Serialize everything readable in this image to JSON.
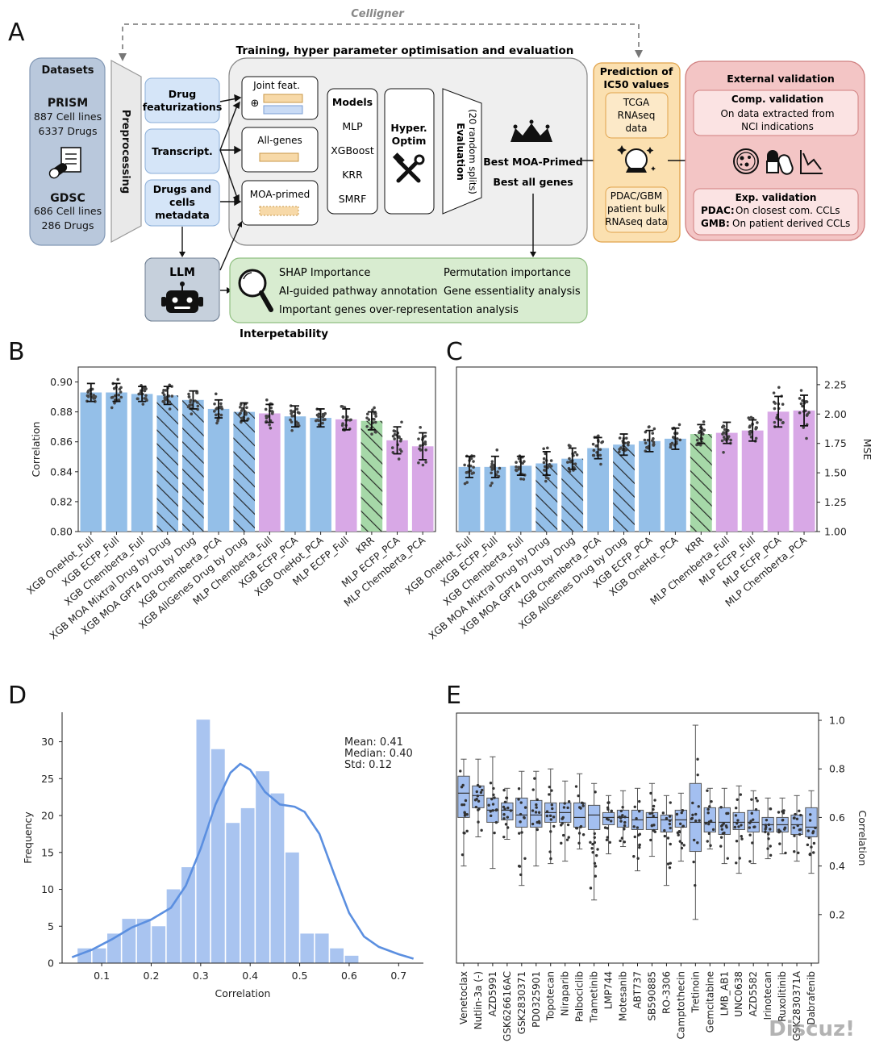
{
  "panel_a": {
    "letter": "A",
    "celligner": "Celligner",
    "training_title": "Training, hyper parameter optimisation and evaluation",
    "datasets": {
      "title": "Datasets",
      "prism_name": "PRISM",
      "prism_cells": "887 Cell lines",
      "prism_drugs": "6337 Drugs",
      "gdsc_name": "GDSC",
      "gdsc_cells": "686 Cell lines",
      "gdsc_drugs": "286 Drugs"
    },
    "preprocessing": "Preprocessing",
    "inputs": {
      "drug_feat_1": "Drug",
      "drug_feat_2": "featurizations",
      "transcript": "Transcript.",
      "meta_1": "Drugs and",
      "meta_2": "cells",
      "meta_3": "metadata"
    },
    "features": {
      "joint": "Joint feat.",
      "plus": "⊕",
      "allgenes": "All-genes",
      "moa": "MOA-primed"
    },
    "models": {
      "title": "Models",
      "items": [
        "MLP",
        "XGBoost",
        "KRR",
        "SMRF"
      ]
    },
    "hyper": {
      "line1": "Hyper.",
      "line2": "Optim"
    },
    "evaluation": {
      "line1": "Evaluation",
      "line2": "(20 random splits)"
    },
    "best": {
      "line1": "Best MOA-Primed",
      "line2": "Best all genes"
    },
    "prediction": {
      "title1": "Prediction of",
      "title2": "IC50 values",
      "tcga1": "TCGA",
      "tcga2": "RNAseq",
      "tcga3": "data",
      "pdac1": "PDAC/GBM",
      "pdac2": "patient bulk",
      "pdac3": "RNAseq data"
    },
    "external": {
      "title": "External validation",
      "comp_title": "Comp. validation",
      "comp1": "On data extracted from",
      "comp2": "NCI indications",
      "exp_title": "Exp. validation",
      "pdac_label": "PDAC:",
      "pdac_text": "On closest com. CCLs",
      "gmb_label": "GMB:",
      "gmb_text": "On patient derived CCLs"
    },
    "llm": "LLM",
    "interp": {
      "shap": "SHAP Importance",
      "perm": "Permutation importance",
      "ai": "AI-guided pathway annotation",
      "gene": "Gene essentiality analysis",
      "overrep": "Important genes over-representation analysis",
      "title": "Interpetability"
    }
  },
  "colors": {
    "xgb_blue": "#94bfe8",
    "mlp_purple": "#d8a8e6",
    "krr_green": "#a6d8a8",
    "hist_blue": "#a9c4f0",
    "kde_blue": "#5b8fe0",
    "box_blue": "#a3bff0"
  },
  "chart_data": [
    {
      "panel": "B",
      "type": "bar",
      "ylabel": "Correlation",
      "ylim": [
        0.8,
        0.91
      ],
      "yticks": [
        "0.80",
        "0.82",
        "0.84",
        "0.86",
        "0.88",
        "0.90"
      ],
      "categories": [
        "XGB OneHot_Full",
        "XGB ECFP_Full",
        "XGB Chemberta_Full",
        "XGB MOA Mixtral Drug by Drug",
        "XGB MOA GPT4 Drug by Drug",
        "XGB Chemberta_PCA",
        "XGB AllGenes Drug by Drug",
        "MLP Chemberta_Full",
        "XGB ECFP_PCA",
        "XGB OneHot_PCA",
        "MLP ECFP_Full",
        "KRR",
        "MLP ECFP_PCA",
        "MLP Chemberta_PCA"
      ],
      "values": [
        0.893,
        0.893,
        0.892,
        0.891,
        0.888,
        0.882,
        0.88,
        0.879,
        0.877,
        0.876,
        0.875,
        0.874,
        0.861,
        0.857
      ],
      "errors": [
        0.006,
        0.006,
        0.005,
        0.006,
        0.006,
        0.006,
        0.006,
        0.006,
        0.007,
        0.006,
        0.007,
        0.006,
        0.009,
        0.009
      ],
      "group": [
        "xgb",
        "xgb",
        "xgb",
        "xgb",
        "xgb",
        "xgb",
        "xgb",
        "mlp",
        "xgb",
        "xgb",
        "mlp",
        "krr",
        "mlp",
        "mlp"
      ],
      "hatched": [
        false,
        false,
        false,
        true,
        true,
        false,
        true,
        false,
        false,
        false,
        false,
        true,
        false,
        false
      ]
    },
    {
      "panel": "C",
      "type": "bar",
      "ylabel": "MSE",
      "ylim": [
        1.0,
        2.4
      ],
      "yticks": [
        "1.00",
        "1.25",
        "1.50",
        "1.75",
        "2.00",
        "2.25"
      ],
      "categories": [
        "XGB OneHot_Full",
        "XGB ECFP_Full",
        "XGB Chemberta_Full",
        "XGB MOA Mixtral Drug by Drug",
        "XGB MOA GPT4 Drug by Drug",
        "XGB Chemberta_PCA",
        "XGB AllGenes Drug by Drug",
        "XGB ECFP_PCA",
        "XGB OneHot_PCA",
        "KRR",
        "MLP Chemberta_Full",
        "MLP ECFP_Full",
        "MLP ECFP_PCA",
        "MLP Chemberta_PCA"
      ],
      "values": [
        1.55,
        1.55,
        1.56,
        1.58,
        1.62,
        1.71,
        1.74,
        1.77,
        1.79,
        1.83,
        1.84,
        1.86,
        2.02,
        2.03
      ],
      "errors": [
        0.09,
        0.09,
        0.08,
        0.1,
        0.09,
        0.09,
        0.09,
        0.09,
        0.09,
        0.08,
        0.09,
        0.09,
        0.13,
        0.13
      ],
      "group": [
        "xgb",
        "xgb",
        "xgb",
        "xgb",
        "xgb",
        "xgb",
        "xgb",
        "xgb",
        "xgb",
        "krr",
        "mlp",
        "mlp",
        "mlp",
        "mlp"
      ],
      "hatched": [
        false,
        false,
        false,
        true,
        true,
        false,
        true,
        false,
        false,
        true,
        false,
        false,
        false,
        false
      ]
    },
    {
      "panel": "D",
      "type": "histogram",
      "xlabel": "Correlation",
      "ylabel": "Frequency",
      "xlim": [
        0.02,
        0.75
      ],
      "ylim": [
        0,
        34
      ],
      "xticks": [
        "0.1",
        "0.2",
        "0.3",
        "0.4",
        "0.5",
        "0.6",
        "0.7"
      ],
      "yticks": [
        "0",
        "5",
        "10",
        "15",
        "20",
        "25",
        "30"
      ],
      "bin_start": 0.05,
      "bin_width": 0.03,
      "counts": [
        2,
        2,
        4,
        6,
        6,
        5,
        10,
        13,
        33,
        29,
        19,
        21,
        26,
        23,
        15,
        4,
        4,
        2,
        1
      ],
      "kde": [
        [
          0.04,
          0.8
        ],
        [
          0.08,
          1.8
        ],
        [
          0.12,
          3.2
        ],
        [
          0.16,
          4.8
        ],
        [
          0.2,
          5.9
        ],
        [
          0.24,
          7.5
        ],
        [
          0.27,
          10.5
        ],
        [
          0.3,
          15.5
        ],
        [
          0.33,
          21.5
        ],
        [
          0.36,
          25.8
        ],
        [
          0.38,
          27.0
        ],
        [
          0.4,
          26.2
        ],
        [
          0.43,
          23.2
        ],
        [
          0.46,
          21.5
        ],
        [
          0.49,
          21.2
        ],
        [
          0.51,
          20.5
        ],
        [
          0.54,
          17.5
        ],
        [
          0.57,
          12.0
        ],
        [
          0.6,
          6.8
        ],
        [
          0.63,
          3.6
        ],
        [
          0.66,
          2.2
        ],
        [
          0.7,
          1.2
        ],
        [
          0.73,
          0.6
        ]
      ],
      "stats": {
        "mean": "Mean: 0.41",
        "median": "Median: 0.40",
        "std": "Std: 0.12"
      }
    },
    {
      "panel": "E",
      "type": "box",
      "ylabel": "Correlation",
      "ylim": [
        0.0,
        1.03
      ],
      "yticks": [
        "0.2",
        "0.4",
        "0.6",
        "0.8",
        "1.0"
      ],
      "categories": [
        "Venetoclax",
        "Nutlin-3a (-)",
        "AZD5991",
        "GSK626616AC",
        "GSK2830371",
        "PD0325901",
        "Topotecan",
        "Niraparib",
        "Palbociclib",
        "Trametinib",
        "LMP744",
        "Motesanib",
        "ABT737",
        "SB590885",
        "RO-3306",
        "Camptothecin",
        "Tretinoin",
        "Gemcitabine",
        "LMB_AB1",
        "UNC0638",
        "AZD5582",
        "Irinotecan",
        "Ruxolitinib",
        "GSK2830371A",
        "Dabrafenib"
      ],
      "boxes": [
        {
          "min": 0.4,
          "q1": 0.6,
          "median": 0.7,
          "q3": 0.77,
          "max": 0.84
        },
        {
          "min": 0.52,
          "q1": 0.64,
          "median": 0.69,
          "q3": 0.73,
          "max": 0.84
        },
        {
          "min": 0.39,
          "q1": 0.58,
          "median": 0.63,
          "q3": 0.68,
          "max": 0.85
        },
        {
          "min": 0.51,
          "q1": 0.59,
          "median": 0.63,
          "q3": 0.66,
          "max": 0.72
        },
        {
          "min": 0.32,
          "q1": 0.56,
          "median": 0.61,
          "q3": 0.68,
          "max": 0.79
        },
        {
          "min": 0.4,
          "q1": 0.56,
          "median": 0.61,
          "q3": 0.67,
          "max": 0.79
        },
        {
          "min": 0.41,
          "q1": 0.58,
          "median": 0.62,
          "q3": 0.66,
          "max": 0.8
        },
        {
          "min": 0.42,
          "q1": 0.58,
          "median": 0.62,
          "q3": 0.66,
          "max": 0.75
        },
        {
          "min": 0.47,
          "q1": 0.56,
          "median": 0.6,
          "q3": 0.66,
          "max": 0.78
        },
        {
          "min": 0.26,
          "q1": 0.55,
          "median": 0.61,
          "q3": 0.65,
          "max": 0.74
        },
        {
          "min": 0.45,
          "q1": 0.57,
          "median": 0.6,
          "q3": 0.62,
          "max": 0.69
        },
        {
          "min": 0.48,
          "q1": 0.56,
          "median": 0.6,
          "q3": 0.63,
          "max": 0.71
        },
        {
          "min": 0.38,
          "q1": 0.55,
          "median": 0.59,
          "q3": 0.63,
          "max": 0.72
        },
        {
          "min": 0.44,
          "q1": 0.55,
          "median": 0.6,
          "q3": 0.62,
          "max": 0.74
        },
        {
          "min": 0.32,
          "q1": 0.54,
          "median": 0.59,
          "q3": 0.61,
          "max": 0.69
        },
        {
          "min": 0.42,
          "q1": 0.56,
          "median": 0.59,
          "q3": 0.63,
          "max": 0.7
        },
        {
          "min": 0.18,
          "q1": 0.46,
          "median": 0.58,
          "q3": 0.74,
          "max": 0.98
        },
        {
          "min": 0.47,
          "q1": 0.54,
          "median": 0.58,
          "q3": 0.64,
          "max": 0.72
        },
        {
          "min": 0.41,
          "q1": 0.53,
          "median": 0.58,
          "q3": 0.64,
          "max": 0.72
        },
        {
          "min": 0.37,
          "q1": 0.55,
          "median": 0.58,
          "q3": 0.62,
          "max": 0.73
        },
        {
          "min": 0.41,
          "q1": 0.54,
          "median": 0.58,
          "q3": 0.63,
          "max": 0.71
        },
        {
          "min": 0.43,
          "q1": 0.54,
          "median": 0.57,
          "q3": 0.6,
          "max": 0.68
        },
        {
          "min": 0.45,
          "q1": 0.54,
          "median": 0.57,
          "q3": 0.6,
          "max": 0.68
        },
        {
          "min": 0.42,
          "q1": 0.53,
          "median": 0.57,
          "q3": 0.61,
          "max": 0.69
        },
        {
          "min": 0.37,
          "q1": 0.52,
          "median": 0.56,
          "q3": 0.64,
          "max": 0.71
        }
      ]
    }
  ],
  "panel_letters": {
    "b": "B",
    "c": "C",
    "d": "D",
    "e": "E"
  },
  "watermark": "Discuz!"
}
